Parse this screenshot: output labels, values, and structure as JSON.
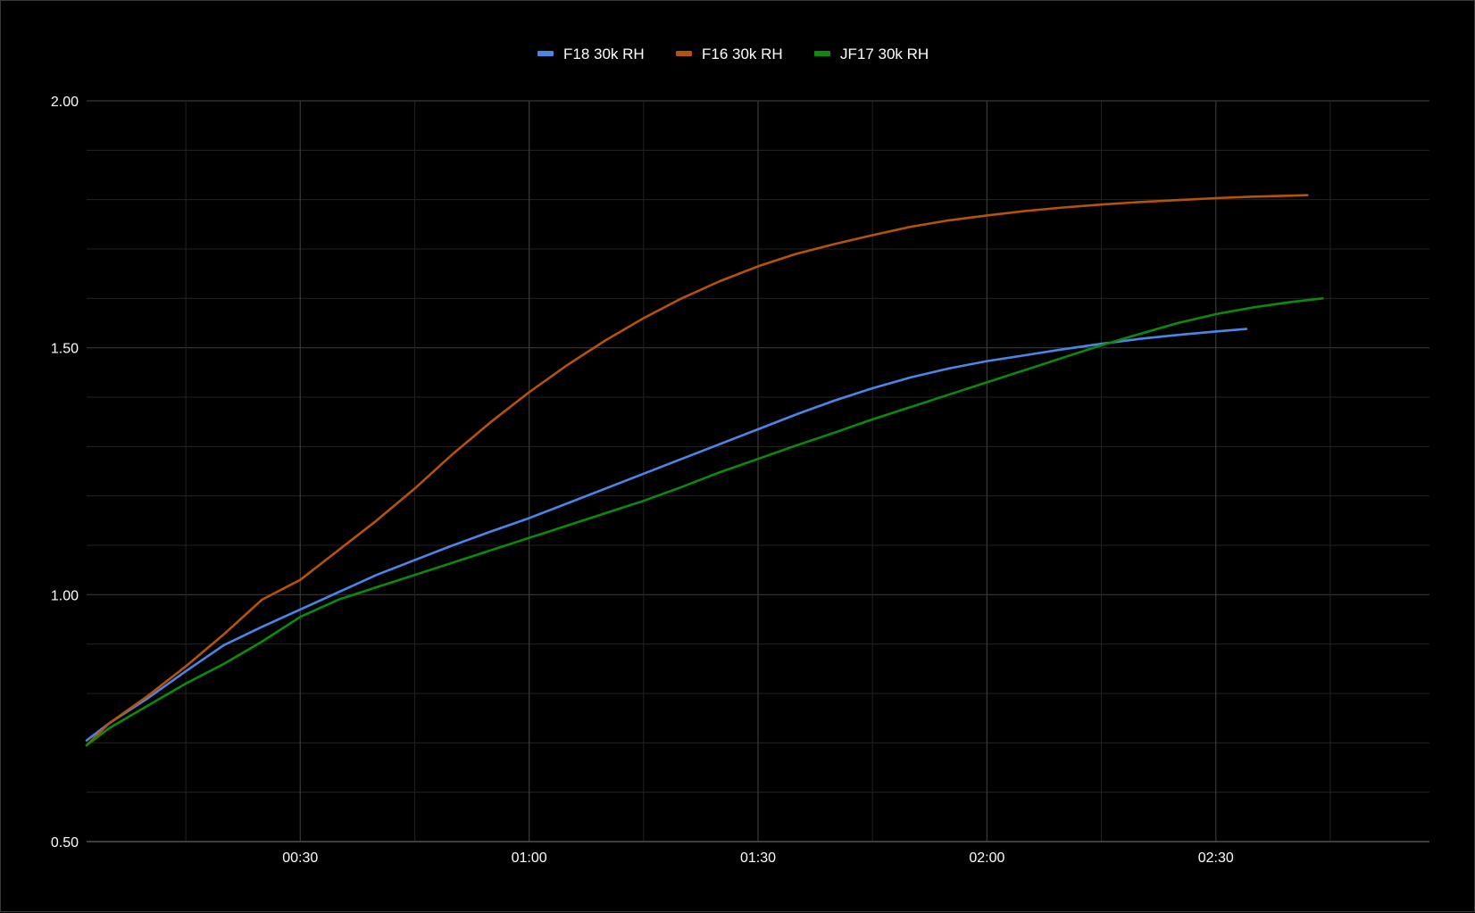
{
  "chart_data": {
    "type": "line",
    "title": "",
    "xlabel": "",
    "ylabel": "",
    "x_unit": "mm:ss",
    "xlim": [
      "00:02",
      "02:58"
    ],
    "ylim": [
      0.5,
      2.0
    ],
    "x_ticks": [
      "00:30",
      "01:00",
      "01:30",
      "02:00",
      "02:30"
    ],
    "y_ticks": [
      "0.50",
      "1.00",
      "1.50",
      "2.00"
    ],
    "grid": true,
    "legend_position": "top-center",
    "background": "#000000",
    "grid_major_color": "#3a3a3a",
    "grid_minor_color": "#222222",
    "series": [
      {
        "name": "F18 30k RH",
        "color": "#4a86e8",
        "x": [
          "00:02",
          "00:05",
          "00:10",
          "00:15",
          "00:20",
          "00:25",
          "00:30",
          "00:35",
          "00:40",
          "00:45",
          "00:50",
          "00:55",
          "01:00",
          "01:05",
          "01:10",
          "01:15",
          "01:20",
          "01:25",
          "01:30",
          "01:35",
          "01:40",
          "01:45",
          "01:50",
          "01:55",
          "02:00",
          "02:05",
          "02:10",
          "02:15",
          "02:20",
          "02:25",
          "02:30",
          "02:34"
        ],
        "y": [
          0.705,
          0.74,
          0.79,
          0.845,
          0.898,
          0.935,
          0.97,
          1.005,
          1.04,
          1.07,
          1.1,
          1.128,
          1.155,
          1.185,
          1.215,
          1.245,
          1.275,
          1.305,
          1.335,
          1.365,
          1.393,
          1.418,
          1.44,
          1.458,
          1.473,
          1.485,
          1.497,
          1.508,
          1.518,
          1.526,
          1.533,
          1.538
        ]
      },
      {
        "name": "F16 30k RH",
        "color": "#b45309",
        "x": [
          "00:02",
          "00:05",
          "00:10",
          "00:15",
          "00:20",
          "00:25",
          "00:30",
          "00:35",
          "00:40",
          "00:45",
          "00:50",
          "00:55",
          "01:00",
          "01:05",
          "01:10",
          "01:15",
          "01:20",
          "01:25",
          "01:30",
          "01:35",
          "01:40",
          "01:45",
          "01:50",
          "01:55",
          "02:00",
          "02:05",
          "02:10",
          "02:15",
          "02:20",
          "02:25",
          "02:30",
          "02:35",
          "02:40",
          "02:42"
        ],
        "y": [
          0.695,
          0.74,
          0.795,
          0.855,
          0.92,
          0.99,
          1.03,
          1.09,
          1.15,
          1.215,
          1.285,
          1.35,
          1.41,
          1.465,
          1.515,
          1.56,
          1.6,
          1.635,
          1.665,
          1.69,
          1.71,
          1.728,
          1.745,
          1.758,
          1.768,
          1.777,
          1.784,
          1.79,
          1.795,
          1.799,
          1.803,
          1.806,
          1.808,
          1.809
        ]
      },
      {
        "name": "JF17 30k RH",
        "color": "#0b8a0b",
        "x": [
          "00:02",
          "00:05",
          "00:10",
          "00:15",
          "00:20",
          "00:25",
          "00:30",
          "00:35",
          "00:40",
          "00:45",
          "00:50",
          "00:55",
          "01:00",
          "01:05",
          "01:10",
          "01:15",
          "01:20",
          "01:25",
          "01:30",
          "01:35",
          "01:40",
          "01:45",
          "01:50",
          "01:55",
          "02:00",
          "02:05",
          "02:10",
          "02:15",
          "02:20",
          "02:25",
          "02:30",
          "02:35",
          "02:40",
          "02:44"
        ],
        "y": [
          0.695,
          0.73,
          0.775,
          0.82,
          0.86,
          0.905,
          0.955,
          0.99,
          1.015,
          1.04,
          1.065,
          1.09,
          1.115,
          1.14,
          1.165,
          1.19,
          1.218,
          1.248,
          1.275,
          1.302,
          1.328,
          1.355,
          1.38,
          1.405,
          1.43,
          1.455,
          1.48,
          1.505,
          1.528,
          1.55,
          1.568,
          1.582,
          1.593,
          1.6
        ]
      }
    ]
  }
}
